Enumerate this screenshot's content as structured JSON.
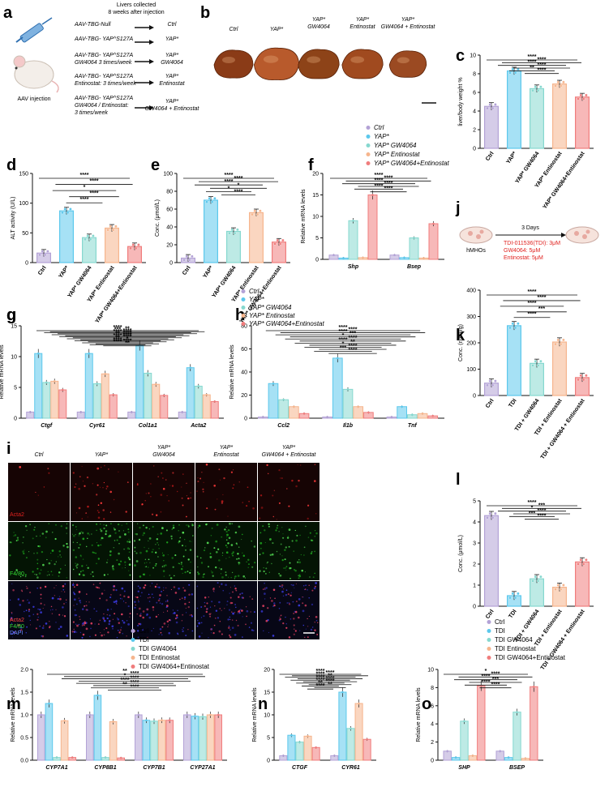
{
  "colors": {
    "ctrl": "#b3a2d6",
    "yap": "#5cc8ec",
    "gw": "#86d8cf",
    "ent": "#f6b58d",
    "combo": "#f07d7d",
    "tdi_red": "#e0221f"
  },
  "panels": {
    "a": {
      "letter": "a",
      "header": "Livers collected\n8 weeks after injection",
      "injection_label": "AAV injection",
      "rows": [
        {
          "vector": "AAV-TBG-Null",
          "group": "Ctrl"
        },
        {
          "vector": "AAV-TBG- YAP^S127A",
          "group": "YAP*"
        },
        {
          "vector": "AAV-TBG- YAP^S127A\nGW4064 3 times/week",
          "group": "YAP*\nGW4064"
        },
        {
          "vector": "AAV-TBG- YAP^S127A\nEntinostat: 3 times/week",
          "group": "YAP*\nEntinostat"
        },
        {
          "vector": "AAV-TBG- YAP^S127A\nGW4064 / Entinostat:\n3 times/week",
          "group": "YAP*\nGW4064 + Entinostat"
        }
      ]
    },
    "b": {
      "letter": "b",
      "labels": [
        "Ctrl",
        "YAP*",
        "YAP*\nGW4064",
        "YAP*\nEntinostat",
        "YAP*\nGW4064 + Entinostat"
      ]
    },
    "j": {
      "letter": "j",
      "days": "3 Days",
      "left_label": "hMHOs",
      "treatments": [
        "TDI-011536(TDI): 3μM",
        "GW4064: 5μM",
        "Entinostat: 5μM"
      ]
    },
    "i": {
      "letter": "i",
      "columns": [
        "Ctrl",
        "YAP*",
        "YAP*\nGW4064",
        "YAP*\nEntinostat",
        "YAP*\nGW4064 + Entinostat"
      ],
      "row_labels": [
        "Acta2",
        "F4/80",
        "Acta2\nF4/80\nDAPI"
      ]
    },
    "legend_mouse": [
      "Ctrl",
      "YAP*",
      "YAP* GW4064",
      "YAP* Entinostat",
      "YAP* GW4064+Entinostat"
    ],
    "legend_tdi": [
      "Ctrl",
      "TDI",
      "TDI GW4064",
      "TDI Entinostat",
      "TDI GW4064+Entinostat"
    ]
  },
  "chart_data": [
    {
      "id": "c",
      "letter": "c",
      "type": "bar",
      "ylabel": "liver/body weight %",
      "ylim": [
        0,
        10
      ],
      "yticks": [
        0,
        2,
        4,
        6,
        8,
        10
      ],
      "categories": [
        "Ctrl",
        "YAP*",
        "YAP* GW4064",
        "YAP* Entinostat",
        "YAP* GW4064+Entinostat"
      ],
      "values": [
        4.5,
        8.3,
        6.4,
        6.9,
        5.5
      ],
      "stars": [
        "****",
        "****",
        "****",
        "****",
        "**",
        "****"
      ]
    },
    {
      "id": "d",
      "letter": "d",
      "type": "bar",
      "ylabel": "ALT activity (U/L)",
      "ylim": [
        0,
        150
      ],
      "yticks": [
        0,
        50,
        100,
        150
      ],
      "categories": [
        "Ctrl",
        "YAP*",
        "YAP* GW4064",
        "YAP* Entinostat",
        "YAP* GW4064+Entinostat"
      ],
      "values": [
        16,
        87,
        42,
        58,
        27
      ],
      "stars": [
        "****",
        "****",
        "*",
        "****",
        "****"
      ]
    },
    {
      "id": "e",
      "letter": "e",
      "type": "bar",
      "ylabel": "Conc. (μmol/L)",
      "ylim": [
        0,
        100
      ],
      "yticks": [
        0,
        20,
        40,
        60,
        80,
        100
      ],
      "categories": [
        "Ctrl",
        "YAP*",
        "YAP* GW4064",
        "YAP* Entinostat",
        "YAP* GW4064+Entinostat"
      ],
      "values": [
        5,
        70,
        35,
        56,
        23
      ],
      "stars": [
        "****",
        "****",
        "****",
        "*",
        "*",
        "****"
      ]
    },
    {
      "id": "f",
      "letter": "f",
      "type": "bar",
      "ylabel": "Relative mRNA levels",
      "ylim": [
        0,
        20
      ],
      "yticks": [
        0,
        5,
        10,
        15,
        20
      ],
      "categories": [
        "Shp",
        "Bsep"
      ],
      "series": [
        {
          "name": "Ctrl",
          "values": [
            1,
            1
          ]
        },
        {
          "name": "YAP*",
          "values": [
            0.3,
            0.4
          ]
        },
        {
          "name": "YAP* GW4064",
          "values": [
            9.0,
            5.0
          ]
        },
        {
          "name": "YAP* Entinostat",
          "values": [
            0.4,
            0.3
          ]
        },
        {
          "name": "YAP* GW4064+Entinostat",
          "values": [
            15.0,
            8.3
          ]
        }
      ],
      "stars": [
        "****",
        "****",
        "****",
        "****",
        "****",
        "****"
      ]
    },
    {
      "id": "g",
      "letter": "g",
      "type": "bar",
      "ylabel": "Relative mRNA levels",
      "ylim": [
        0,
        15
      ],
      "yticks": [
        0,
        5,
        10,
        15
      ],
      "categories": [
        "Ctgf",
        "Cyr61",
        "Col1a1",
        "Acta2"
      ],
      "series": [
        {
          "name": "Ctrl",
          "values": [
            1,
            1,
            1,
            1
          ]
        },
        {
          "name": "YAP*",
          "values": [
            10.5,
            10.5,
            11.8,
            8.2
          ]
        },
        {
          "name": "YAP* GW4064",
          "values": [
            5.8,
            5.6,
            7.3,
            5.2
          ]
        },
        {
          "name": "YAP* Entinostat",
          "values": [
            6.0,
            7.2,
            5.5,
            3.8
          ]
        },
        {
          "name": "YAP* GW4064+Entinostat",
          "values": [
            4.6,
            3.8,
            3.7,
            2.7
          ]
        }
      ],
      "stars": [
        "****",
        "**",
        "***",
        "****",
        "****",
        "****",
        "**",
        "****",
        "****",
        "****",
        "**",
        "*",
        "****",
        "****",
        "****",
        "**"
      ]
    },
    {
      "id": "h",
      "letter": "h",
      "type": "bar",
      "ylabel": "Relative mRNA levels",
      "ylim": [
        0,
        80
      ],
      "yticks": [
        0,
        20,
        40,
        60,
        80
      ],
      "categories": [
        "Ccl2",
        "Il1b",
        "Tnf"
      ],
      "series": [
        {
          "name": "Ctrl",
          "values": [
            1,
            1,
            1
          ]
        },
        {
          "name": "YAP*",
          "values": [
            30,
            52,
            10
          ]
        },
        {
          "name": "YAP* GW4064",
          "values": [
            16,
            25,
            3
          ]
        },
        {
          "name": "YAP* Entinostat",
          "values": [
            10,
            10,
            4
          ]
        },
        {
          "name": "YAP* GW4064+Entinostat",
          "values": [
            4,
            5,
            2
          ]
        }
      ],
      "stars": [
        "****",
        "****",
        "****",
        "***",
        "*",
        "****",
        "****",
        "**",
        "*",
        "****",
        "***",
        "****"
      ]
    },
    {
      "id": "k",
      "letter": "k",
      "type": "bar",
      "ylabel": "Conc. (nmol/g)",
      "ylim": [
        0,
        400
      ],
      "yticks": [
        0,
        100,
        200,
        300,
        400
      ],
      "categories": [
        "Ctrl",
        "TDI",
        "TDI + GW4064",
        "TDI + Entinostat",
        "TDI + GW4064 + Entinostat"
      ],
      "values": [
        47,
        265,
        122,
        203,
        68
      ],
      "stars": [
        "****",
        "****",
        "****",
        "***",
        "****"
      ]
    },
    {
      "id": "l",
      "letter": "l",
      "type": "bar",
      "ylabel": "Conc. (μmol/L)",
      "ylim": [
        0,
        5
      ],
      "yticks": [
        0,
        1,
        2,
        3,
        4,
        5
      ],
      "categories": [
        "Ctrl",
        "TDI",
        "TDI + GW4064",
        "TDI + Entinostat",
        "TDI + GW4064 + Entinostat"
      ],
      "values": [
        4.3,
        0.5,
        1.3,
        0.9,
        2.1
      ],
      "stars": [
        "****",
        "***",
        "*",
        "****",
        "***",
        "****"
      ]
    },
    {
      "id": "m",
      "letter": "m",
      "type": "bar",
      "ylabel": "Relative mRNA levels",
      "ylim": [
        0,
        2.0
      ],
      "yticks": [
        0.0,
        0.5,
        1.0,
        1.5,
        2.0
      ],
      "categories": [
        "CYP7A1",
        "CYP8B1",
        "CYP7B1",
        "CYP27A1"
      ],
      "series": [
        {
          "name": "Ctrl",
          "values": [
            1.0,
            1.0,
            1.0,
            1.0
          ]
        },
        {
          "name": "TDI",
          "values": [
            1.25,
            1.43,
            0.88,
            0.97
          ]
        },
        {
          "name": "TDI GW4064",
          "values": [
            0.06,
            0.06,
            0.86,
            0.96
          ]
        },
        {
          "name": "TDI Entinostat",
          "values": [
            0.87,
            0.85,
            0.88,
            1.0
          ]
        },
        {
          "name": "TDI GW4064+Entinostat",
          "values": [
            0.06,
            0.05,
            0.88,
            1.0
          ]
        }
      ],
      "stars": [
        "**",
        "****",
        "*",
        "****",
        "****",
        "****",
        "**",
        "****"
      ]
    },
    {
      "id": "n",
      "letter": "n",
      "type": "bar",
      "ylabel": "Relative mRNA levels",
      "ylim": [
        0,
        20
      ],
      "yticks": [
        0,
        5,
        10,
        15,
        20
      ],
      "categories": [
        "CTGF",
        "CYR61"
      ],
      "series": [
        {
          "name": "Ctrl",
          "values": [
            1,
            1
          ]
        },
        {
          "name": "TDI",
          "values": [
            5.5,
            15.0
          ]
        },
        {
          "name": "TDI GW4064",
          "values": [
            4.0,
            7.0
          ]
        },
        {
          "name": "TDI Entinostat",
          "values": [
            5.3,
            12.5
          ]
        },
        {
          "name": "TDI GW4064+Entinostat",
          "values": [
            2.8,
            4.6
          ]
        }
      ],
      "stars": [
        "****",
        "****",
        "****",
        "**",
        "****",
        "****",
        "****",
        "****",
        "**",
        "**",
        "****"
      ]
    },
    {
      "id": "o",
      "letter": "o",
      "type": "bar",
      "ylabel": "Relative mRNA levels",
      "ylim": [
        0,
        10
      ],
      "yticks": [
        0,
        2,
        4,
        6,
        8,
        10
      ],
      "categories": [
        "SHP",
        "BSEP"
      ],
      "series": [
        {
          "name": "Ctrl",
          "values": [
            1,
            1
          ]
        },
        {
          "name": "TDI",
          "values": [
            0.3,
            0.3
          ]
        },
        {
          "name": "TDI GW4064",
          "values": [
            4.3,
            5.3
          ]
        },
        {
          "name": "TDI Entinostat",
          "values": [
            0.5,
            0.2
          ]
        },
        {
          "name": "TDI GW4064+Entinostat",
          "values": [
            8.2,
            8.1
          ]
        }
      ],
      "stars": [
        "*",
        "****",
        "****",
        "***",
        "****",
        "****"
      ]
    }
  ]
}
